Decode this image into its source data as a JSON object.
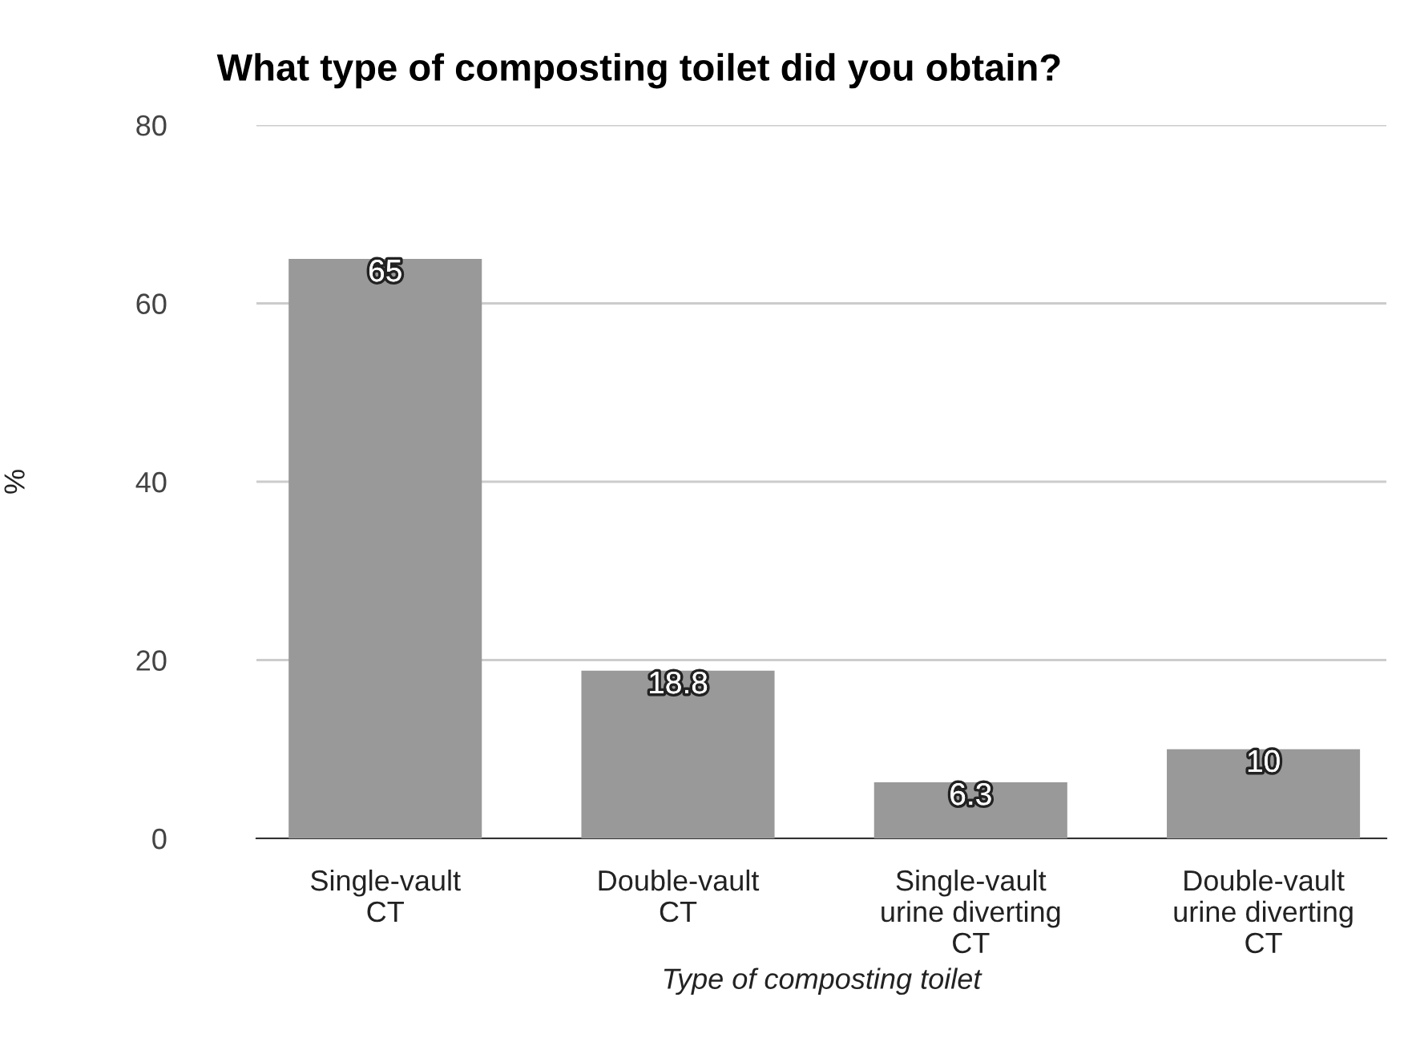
{
  "chart_data": {
    "type": "bar",
    "title": "What type of composting toilet did you obtain?",
    "xlabel": "Type of composting toilet",
    "ylabel": "%",
    "categories": [
      "Single-vault\nCT",
      "Double-vault\nCT",
      "Single-vault\nurine diverting\nCT",
      "Double-vault\nurine diverting\nCT"
    ],
    "values": [
      65,
      18.8,
      6.3,
      10
    ],
    "color": "#999999",
    "ylim": [
      0,
      80
    ],
    "yticks": [
      0,
      20,
      40,
      60,
      80
    ],
    "grid": "y",
    "data_labels": true
  }
}
